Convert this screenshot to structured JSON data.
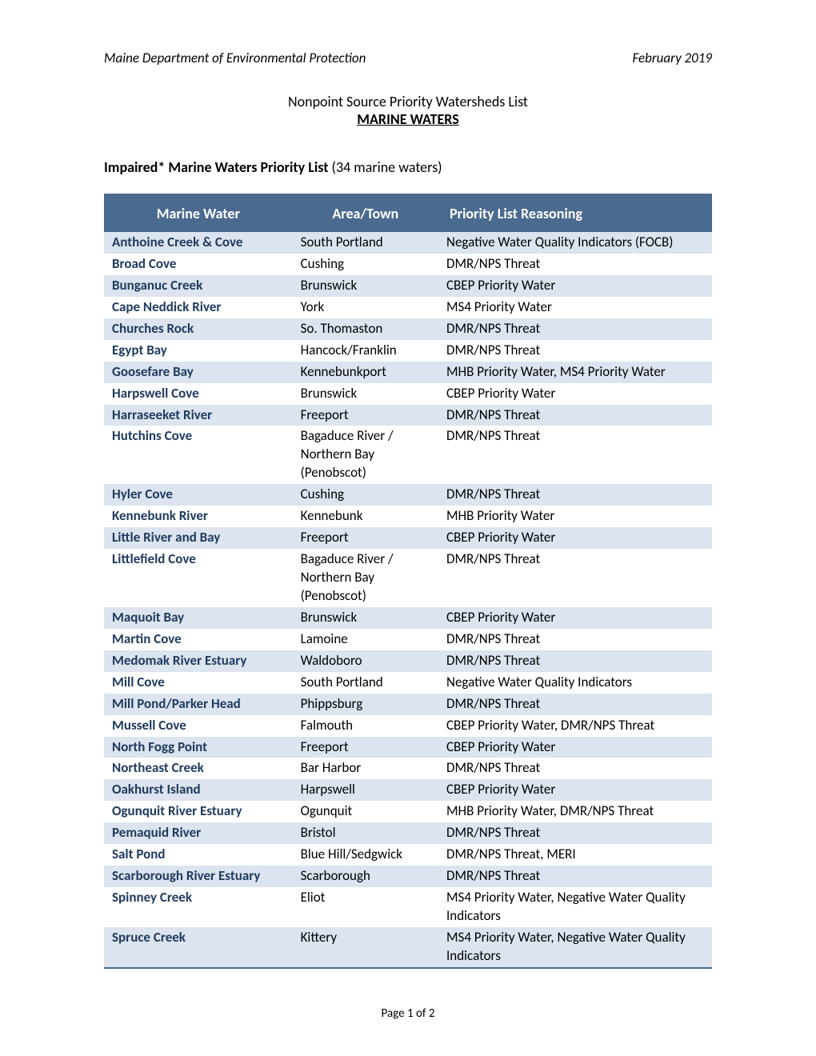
{
  "header": {
    "left": "Maine Department of Environmental Protection",
    "right": "February 2019"
  },
  "title": {
    "line1": "Nonpoint Source Priority Watersheds List",
    "line2": "MARINE WATERS"
  },
  "subtitle": {
    "bold": "Impaired* Marine Waters Priority List",
    "rest": " (34 marine waters)"
  },
  "table": {
    "columns": [
      "Marine Water",
      "Area/Town",
      "Priority List Reasoning"
    ],
    "header_bg": "#4a6a8f",
    "header_fg": "#ffffff",
    "row_alt_bg": "#dbe4ef",
    "name_color": "#1f3a5f",
    "rows": [
      {
        "name": "Anthoine Creek & Cove",
        "area": "South Portland",
        "reason": "Negative Water Quality Indicators (FOCB)"
      },
      {
        "name": "Broad Cove",
        "area": "Cushing",
        "reason": "DMR/NPS Threat"
      },
      {
        "name": "Bunganuc Creek",
        "area": "Brunswick",
        "reason": "CBEP Priority Water"
      },
      {
        "name": "Cape Neddick River",
        "area": "York",
        "reason": "MS4 Priority Water"
      },
      {
        "name": "Churches Rock",
        "area": "So. Thomaston",
        "reason": "DMR/NPS Threat"
      },
      {
        "name": "Egypt Bay",
        "area": "Hancock/Franklin",
        "reason": "DMR/NPS Threat"
      },
      {
        "name": "Goosefare Bay",
        "area": "Kennebunkport",
        "reason": "MHB Priority Water, MS4 Priority Water"
      },
      {
        "name": "Harpswell Cove",
        "area": "Brunswick",
        "reason": "CBEP Priority Water"
      },
      {
        "name": "Harraseeket River",
        "area": "Freeport",
        "reason": "DMR/NPS Threat"
      },
      {
        "name": "Hutchins Cove",
        "area": "Bagaduce River / Northern Bay (Penobscot)",
        "reason": "DMR/NPS Threat"
      },
      {
        "name": "Hyler Cove",
        "area": "Cushing",
        "reason": "DMR/NPS Threat"
      },
      {
        "name": "Kennebunk River",
        "area": "Kennebunk",
        "reason": "MHB Priority Water"
      },
      {
        "name": "Little River and Bay",
        "area": "Freeport",
        "reason": "CBEP Priority Water"
      },
      {
        "name": "Littlefield Cove",
        "area": "Bagaduce River / Northern Bay (Penobscot)",
        "reason": "DMR/NPS Threat"
      },
      {
        "name": "Maquoit Bay",
        "area": "Brunswick",
        "reason": "CBEP Priority Water"
      },
      {
        "name": "Martin Cove",
        "area": "Lamoine",
        "reason": "DMR/NPS Threat"
      },
      {
        "name": "Medomak River Estuary",
        "area": "Waldoboro",
        "reason": "DMR/NPS Threat"
      },
      {
        "name": "Mill Cove",
        "area": "South Portland",
        "reason": "Negative Water Quality Indicators"
      },
      {
        "name": "Mill Pond/Parker Head",
        "area": "Phippsburg",
        "reason": "DMR/NPS Threat"
      },
      {
        "name": "Mussell Cove",
        "area": "Falmouth",
        "reason": "CBEP Priority Water, DMR/NPS Threat"
      },
      {
        "name": "North Fogg Point",
        "area": "Freeport",
        "reason": "CBEP Priority Water"
      },
      {
        "name": "Northeast Creek",
        "area": "Bar Harbor",
        "reason": "DMR/NPS Threat"
      },
      {
        "name": "Oakhurst Island",
        "area": "Harpswell",
        "reason": "CBEP Priority Water"
      },
      {
        "name": "Ogunquit River Estuary",
        "area": "Ogunquit",
        "reason": "MHB Priority Water, DMR/NPS Threat"
      },
      {
        "name": "Pemaquid River",
        "area": "Bristol",
        "reason": "DMR/NPS Threat"
      },
      {
        "name": "Salt Pond",
        "area": "Blue Hill/Sedgwick",
        "reason": "DMR/NPS Threat, MERI"
      },
      {
        "name": "Scarborough River Estuary",
        "area": "Scarborough",
        "reason": "DMR/NPS Threat"
      },
      {
        "name": "Spinney Creek",
        "area": "Eliot",
        "reason": "MS4 Priority Water, Negative Water Quality Indicators"
      },
      {
        "name": "Spruce Creek",
        "area": "Kittery",
        "reason": "MS4 Priority Water, Negative Water Quality Indicators"
      }
    ]
  },
  "footer": "Page 1 of 2"
}
